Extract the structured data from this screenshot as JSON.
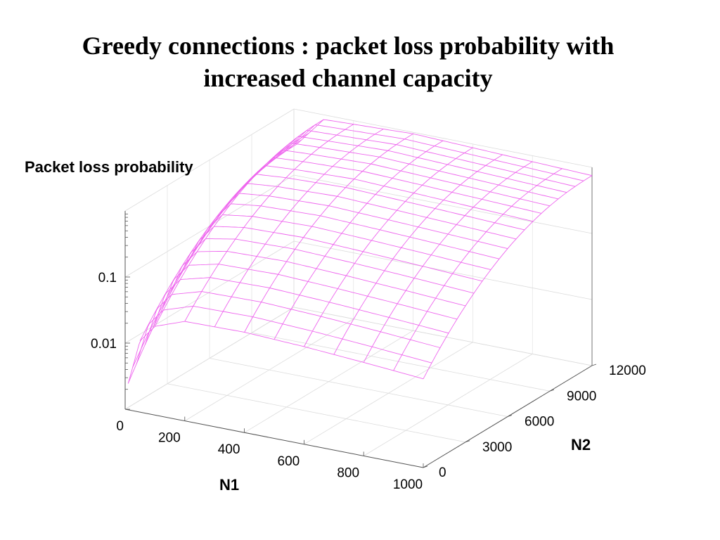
{
  "title": {
    "line1": "Greedy connections : packet loss probability with",
    "line2": "increased channel capacity"
  },
  "chart_data": {
    "type": "surface",
    "zlabel": "Packet loss probability",
    "xlabel": "N1",
    "ylabel": "N2",
    "zscale": "log",
    "x_ticks": [
      "0",
      "200",
      "400",
      "600",
      "800",
      "1000"
    ],
    "y_ticks": [
      "0",
      "3000",
      "6000",
      "9000",
      "12000"
    ],
    "z_ticks": [
      "0.01",
      "0.1"
    ],
    "xlim": [
      0,
      1000
    ],
    "ylim": [
      0,
      12000
    ],
    "zlim": [
      0.001,
      1
    ],
    "surface_color": "#ee66ee",
    "grid": true,
    "front_edge_n2_0": [
      {
        "n1": 10,
        "p": 0.0025
      },
      {
        "n1": 50,
        "p": 0.012
      },
      {
        "n1": 100,
        "p": 0.022
      },
      {
        "n1": 200,
        "p": 0.032
      },
      {
        "n1": 400,
        "p": 0.033
      },
      {
        "n1": 600,
        "p": 0.03
      },
      {
        "n1": 800,
        "p": 0.026
      },
      {
        "n1": 1000,
        "p": 0.022
      }
    ],
    "back_edge_n2_12000": [
      {
        "n1": 10,
        "p": 0.3
      },
      {
        "n1": 100,
        "p": 0.85
      },
      {
        "n1": 400,
        "p": 0.95
      },
      {
        "n1": 1000,
        "p": 0.75
      }
    ]
  }
}
